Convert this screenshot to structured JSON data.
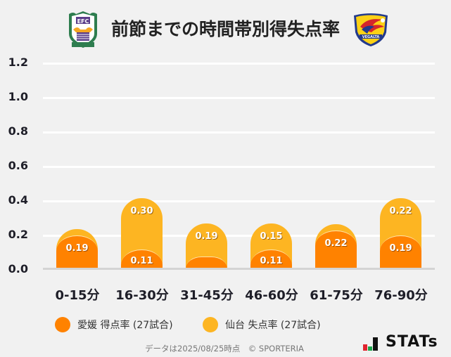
{
  "header": {
    "title": "前節までの時間帯別得失点率",
    "left_team_logo": "ehime-fc-crest",
    "right_team_logo": "vegalta-sendai-crest"
  },
  "colors": {
    "home": "#ff8200",
    "away": "#fdb522",
    "background": "#f1f1f1",
    "grid": "#ffffff",
    "axis": "#d4d4d4"
  },
  "chart_data": {
    "type": "bar",
    "stacked": true,
    "title": "前節までの時間帯別得失点率",
    "xlabel": "",
    "ylabel": "",
    "ylim": [
      0,
      1.2
    ],
    "yticks": [
      "1.2",
      "1.0",
      "0.8",
      "0.6",
      "0.4",
      "0.2",
      "0.0"
    ],
    "grid": true,
    "legend_position": "bottom",
    "categories": [
      "0-15分",
      "16-30分",
      "31-45分",
      "46-60分",
      "61-75分",
      "76-90分"
    ],
    "series": [
      {
        "name": "愛媛 得点率 (27試合)",
        "color": "#ff8200",
        "values": [
          0.19,
          0.11,
          0.0,
          0.11,
          0.22,
          0.19
        ],
        "labels": [
          "0.19",
          "0.11",
          "",
          "0.11",
          "0.22",
          "0.19"
        ]
      },
      {
        "name": "仙台 失点率 (27試合)",
        "color": "#fdb522",
        "values": [
          0.0,
          0.3,
          0.19,
          0.15,
          0.0,
          0.22
        ],
        "labels": [
          "",
          "0.30",
          "0.19",
          "0.15",
          "",
          "0.22"
        ]
      }
    ]
  },
  "legend": {
    "items": [
      {
        "label": "愛媛 得点率 (27試合)",
        "color": "#ff8200"
      },
      {
        "label": "仙台 失点率 (27試合)",
        "color": "#fdb522"
      }
    ]
  },
  "footer": {
    "note": "データは2025/08/25時点　© SPORTERIA",
    "brand": "STATs"
  }
}
